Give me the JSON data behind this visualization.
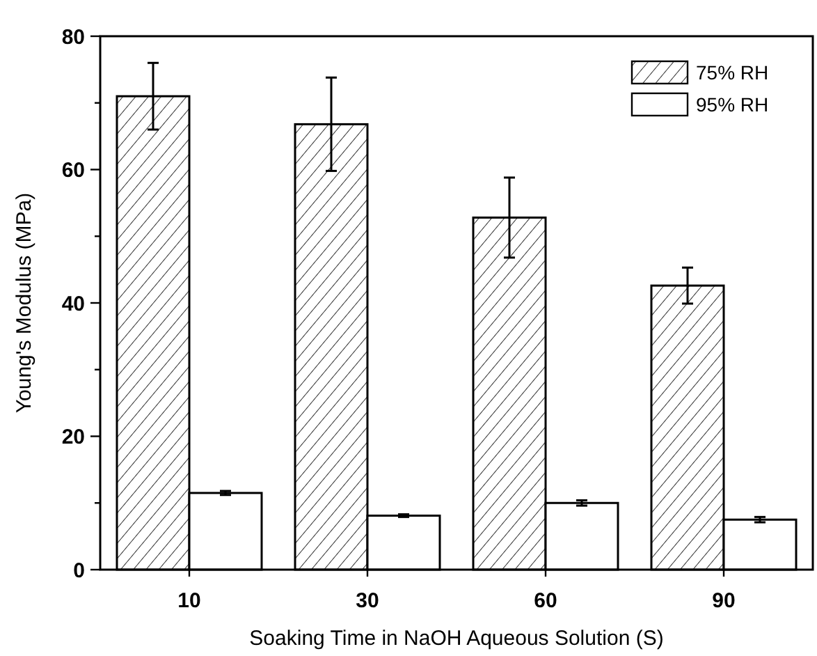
{
  "chart_data": {
    "type": "bar",
    "xlabel": "Soaking Time in NaOH Aqueous Solution (S)",
    "ylabel": "Young's Modulus (MPa)",
    "categories": [
      "10",
      "30",
      "60",
      "90"
    ],
    "series": [
      {
        "name": "75% RH",
        "color": "#000000",
        "values": [
          71,
          66.8,
          52.8,
          42.6
        ],
        "errors": [
          5,
          7,
          6,
          2.7
        ]
      },
      {
        "name": "95% RH",
        "color": "#000000",
        "values": [
          11.5,
          8.1,
          10,
          7.5
        ],
        "errors": [
          0.3,
          0.2,
          0.4,
          0.4
        ]
      }
    ],
    "ylim": [
      0,
      80
    ],
    "yticks": [
      0,
      {
        "value": 10,
        "label": null
      },
      20,
      {
        "value": 30,
        "label": null
      },
      40,
      {
        "value": 50,
        "label": null
      },
      60,
      {
        "value": 70,
        "label": null
      },
      80
    ],
    "legend": "top right",
    "grid": false
  }
}
